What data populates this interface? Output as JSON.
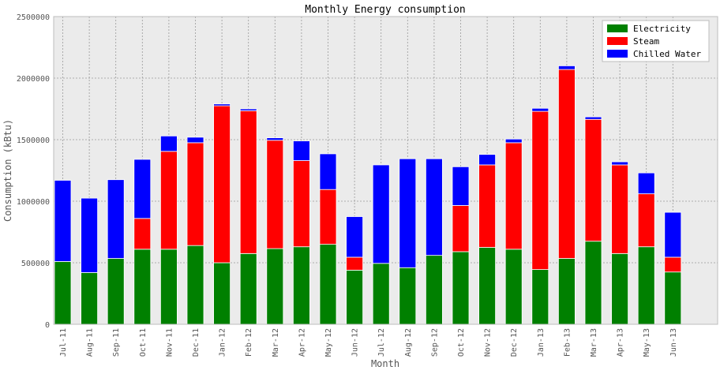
{
  "chart_data": {
    "type": "bar",
    "stacked": true,
    "title": "Monthly Energy consumption",
    "xlabel": "Month",
    "ylabel": "Consumption (kBtu)",
    "ylim": [
      0,
      2500000
    ],
    "yticks": [
      0,
      500000,
      1000000,
      1500000,
      2000000,
      2500000
    ],
    "grid": true,
    "legend_position": "top-right",
    "categories": [
      "Jul-11",
      "Aug-11",
      "Sep-11",
      "Oct-11",
      "Nov-11",
      "Dec-11",
      "Jan-12",
      "Feb-12",
      "Mar-12",
      "Apr-12",
      "May-12",
      "Jun-12",
      "Jul-12",
      "Aug-12",
      "Sep-12",
      "Oct-12",
      "Nov-12",
      "Dec-12",
      "Jan-13",
      "Feb-13",
      "Mar-13",
      "Apr-13",
      "May-13",
      "Jun-13"
    ],
    "series": [
      {
        "name": "Electricity",
        "color": "#008000",
        "values": [
          510000,
          420000,
          535000,
          610000,
          610000,
          640000,
          500000,
          575000,
          615000,
          630000,
          650000,
          440000,
          495000,
          460000,
          560000,
          590000,
          625000,
          610000,
          445000,
          535000,
          675000,
          575000,
          630000,
          425000
        ]
      },
      {
        "name": "Steam",
        "color": "#ff0000",
        "values": [
          0,
          0,
          0,
          250000,
          795000,
          835000,
          1275000,
          1160000,
          880000,
          700000,
          445000,
          105000,
          0,
          0,
          0,
          375000,
          670000,
          865000,
          1285000,
          1535000,
          990000,
          720000,
          430000,
          120000
        ]
      },
      {
        "name": "Chilled Water",
        "color": "#0000ff",
        "values": [
          660000,
          605000,
          640000,
          480000,
          125000,
          45000,
          15000,
          15000,
          20000,
          160000,
          290000,
          330000,
          800000,
          885000,
          785000,
          315000,
          85000,
          30000,
          25000,
          30000,
          20000,
          25000,
          170000,
          365000
        ]
      }
    ]
  }
}
